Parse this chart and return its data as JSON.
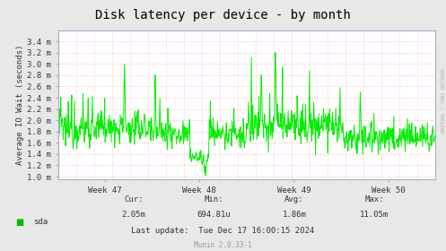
{
  "title": "Disk latency per device - by month",
  "ylabel": "Average IO Wait (seconds)",
  "background_color": "#e8e8e8",
  "plot_bg_color": "#ffffff",
  "line_color": "#00ee00",
  "grid_color": "#ffaaaa",
  "border_color": "#aaaacc",
  "ylim_min": 0.00095,
  "ylim_max": 0.0036,
  "yticks": [
    0.001,
    0.0012,
    0.0014,
    0.0016,
    0.0018,
    0.002,
    0.0022,
    0.0024,
    0.0026,
    0.0028,
    0.003,
    0.0032,
    0.0034
  ],
  "ytick_labels": [
    "1.0 m",
    "1.2 m",
    "1.4 m",
    "1.6 m",
    "1.8 m",
    "2.0 m",
    "2.2 m",
    "2.4 m",
    "2.6 m",
    "2.8 m",
    "3.0 m",
    "3.2 m",
    "3.4 m"
  ],
  "week_labels": [
    "Week 47",
    "Week 48",
    "Week 49",
    "Week 50"
  ],
  "legend_label": "sda",
  "legend_color": "#00bb00",
  "cur": "2.05m",
  "min_val": "694.81u",
  "avg": "1.86m",
  "max_val": "11.05m",
  "last_update": "Tue Dec 17 16:00:15 2024",
  "munin_version": "Munin 2.0.33-1",
  "watermark": "RRDTOOL / TOBI OETIKER",
  "title_fontsize": 10,
  "axis_fontsize": 6.5,
  "label_fontsize": 6.5,
  "stats_fontsize": 6.5
}
